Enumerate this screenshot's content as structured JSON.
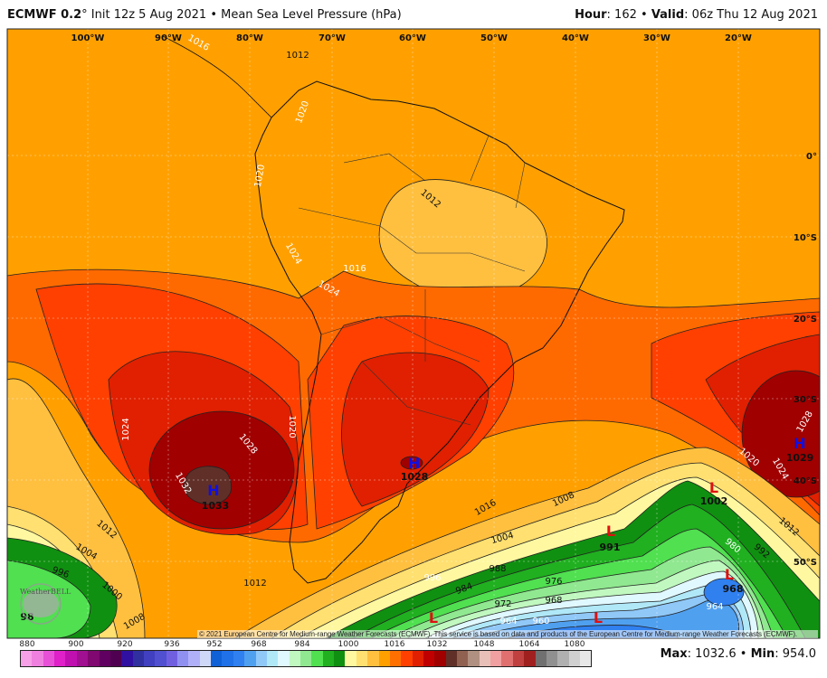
{
  "header": {
    "model": "ECMWF 0.2",
    "degree": "°",
    "init": " Init 12z 5 Aug 2021 • Mean Sea Level Pressure (hPa)",
    "hour_label": "Hour",
    "hour_value": ": 162 • ",
    "valid_label": "Valid",
    "valid_value": ": 06z Thu 12 Aug 2021"
  },
  "longitudes": [
    "100°W",
    "90°W",
    "80°W",
    "70°W",
    "60°W",
    "50°W",
    "40°W",
    "30°W",
    "20°W"
  ],
  "latitudes": [
    "0°",
    "10°S",
    "20°S",
    "30°S",
    "40°S",
    "50°S"
  ],
  "contour_labels": [
    "1012",
    "1020",
    "1020",
    "1012",
    "1024",
    "1016",
    "1024",
    "1024",
    "1028",
    "1020",
    "1032",
    "1012",
    "1004",
    "996",
    "1000",
    "1008",
    "1012",
    "1016",
    "1008",
    "1004",
    "988",
    "996",
    "984",
    "976",
    "972",
    "968",
    "964",
    "960",
    "980",
    "992",
    "1012",
    "1020",
    "1024",
    "1028",
    "964",
    "1016"
  ],
  "centers": [
    {
      "type": "H",
      "value": "1033",
      "color": "#1010e0"
    },
    {
      "type": "H",
      "value": "1028",
      "color": "#1010e0"
    },
    {
      "type": "H",
      "value": "1029",
      "color": "#1010e0"
    },
    {
      "type": "L",
      "value": "1002",
      "color": "#e01010"
    },
    {
      "type": "L",
      "value": "991",
      "color": "#e01010"
    },
    {
      "type": "L",
      "value": "968",
      "color": "#e01010"
    },
    {
      "type": "L",
      "value": "",
      "color": "#e01010"
    },
    {
      "type": "L",
      "value": "",
      "color": "#e01010"
    },
    {
      "type": "",
      "value": "98",
      "color": "#111"
    }
  ],
  "copyright": "© 2021 European Centre for Medium-range Weather Forecasts (ECMWF). This service is based on data and products of the European Centre for Medium-range Weather Forecasts (ECMWF).",
  "logo_text": "WeatherBELL",
  "colorbar": {
    "ticks": [
      "880",
      "900",
      "920",
      "936",
      "952",
      "968",
      "984",
      "1000",
      "1016",
      "1032",
      "1048",
      "1064",
      "1080"
    ],
    "colors": [
      "#f7a0e8",
      "#f080e0",
      "#e850d8",
      "#e020c8",
      "#c010b0",
      "#a01090",
      "#800870",
      "#600060",
      "#500050",
      "#3010a0",
      "#3030a0",
      "#4040c0",
      "#5050d0",
      "#7060e0",
      "#9090f0",
      "#b0b0f8",
      "#d0d8f8",
      "#1060d8",
      "#2070e8",
      "#3080f0",
      "#50a0f0",
      "#90c8f8",
      "#b0e8f8",
      "#e0f8ff",
      "#c0f8c0",
      "#90e890",
      "#50e050",
      "#20b020",
      "#109010",
      "#fff8a0",
      "#ffe070",
      "#ffc040",
      "#ffa000",
      "#ff7000",
      "#ff4000",
      "#e02000",
      "#c00000",
      "#a00000",
      "#603028",
      "#906050",
      "#b09080",
      "#e8c0b8",
      "#f0a0a0",
      "#e07070",
      "#c04040",
      "#a02020",
      "#707070",
      "#909090",
      "#b0b0b0",
      "#d0d0d0",
      "#e8e8e8"
    ]
  },
  "stats": {
    "max_label": "Max",
    "max_value": ": 1032.6 • ",
    "min_label": "Min",
    "min_value": ": 954.0"
  }
}
